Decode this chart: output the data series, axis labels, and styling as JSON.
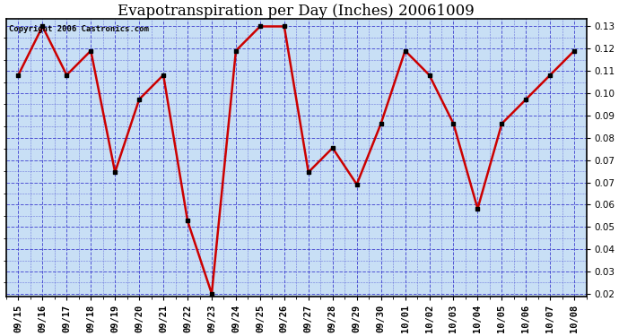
{
  "title": "Evapotranspiration per Day (Inches) 20061009",
  "copyright_text": "Copyright 2006 Castronics.com",
  "x_labels": [
    "09/15",
    "09/16",
    "09/17",
    "09/18",
    "09/19",
    "09/20",
    "09/21",
    "09/22",
    "09/23",
    "09/24",
    "09/25",
    "09/26",
    "09/27",
    "09/28",
    "09/29",
    "09/30",
    "10/01",
    "10/02",
    "10/03",
    "10/04",
    "10/05",
    "10/06",
    "10/07",
    "10/08"
  ],
  "y_values": [
    0.11,
    0.13,
    0.11,
    0.12,
    0.07,
    0.1,
    0.11,
    0.05,
    0.02,
    0.12,
    0.13,
    0.13,
    0.07,
    0.08,
    0.065,
    0.09,
    0.12,
    0.11,
    0.09,
    0.055,
    0.09,
    0.1,
    0.11,
    0.12
  ],
  "line_color": "#cc0000",
  "marker_color": "#000000",
  "plot_bg_color": "#c8dff5",
  "grid_color": "#3333cc",
  "y_min": 0.019,
  "y_max": 0.133,
  "title_fontsize": 12,
  "copyright_fontsize": 6.5,
  "tick_fontsize": 7.5,
  "outer_bg": "#ffffff"
}
